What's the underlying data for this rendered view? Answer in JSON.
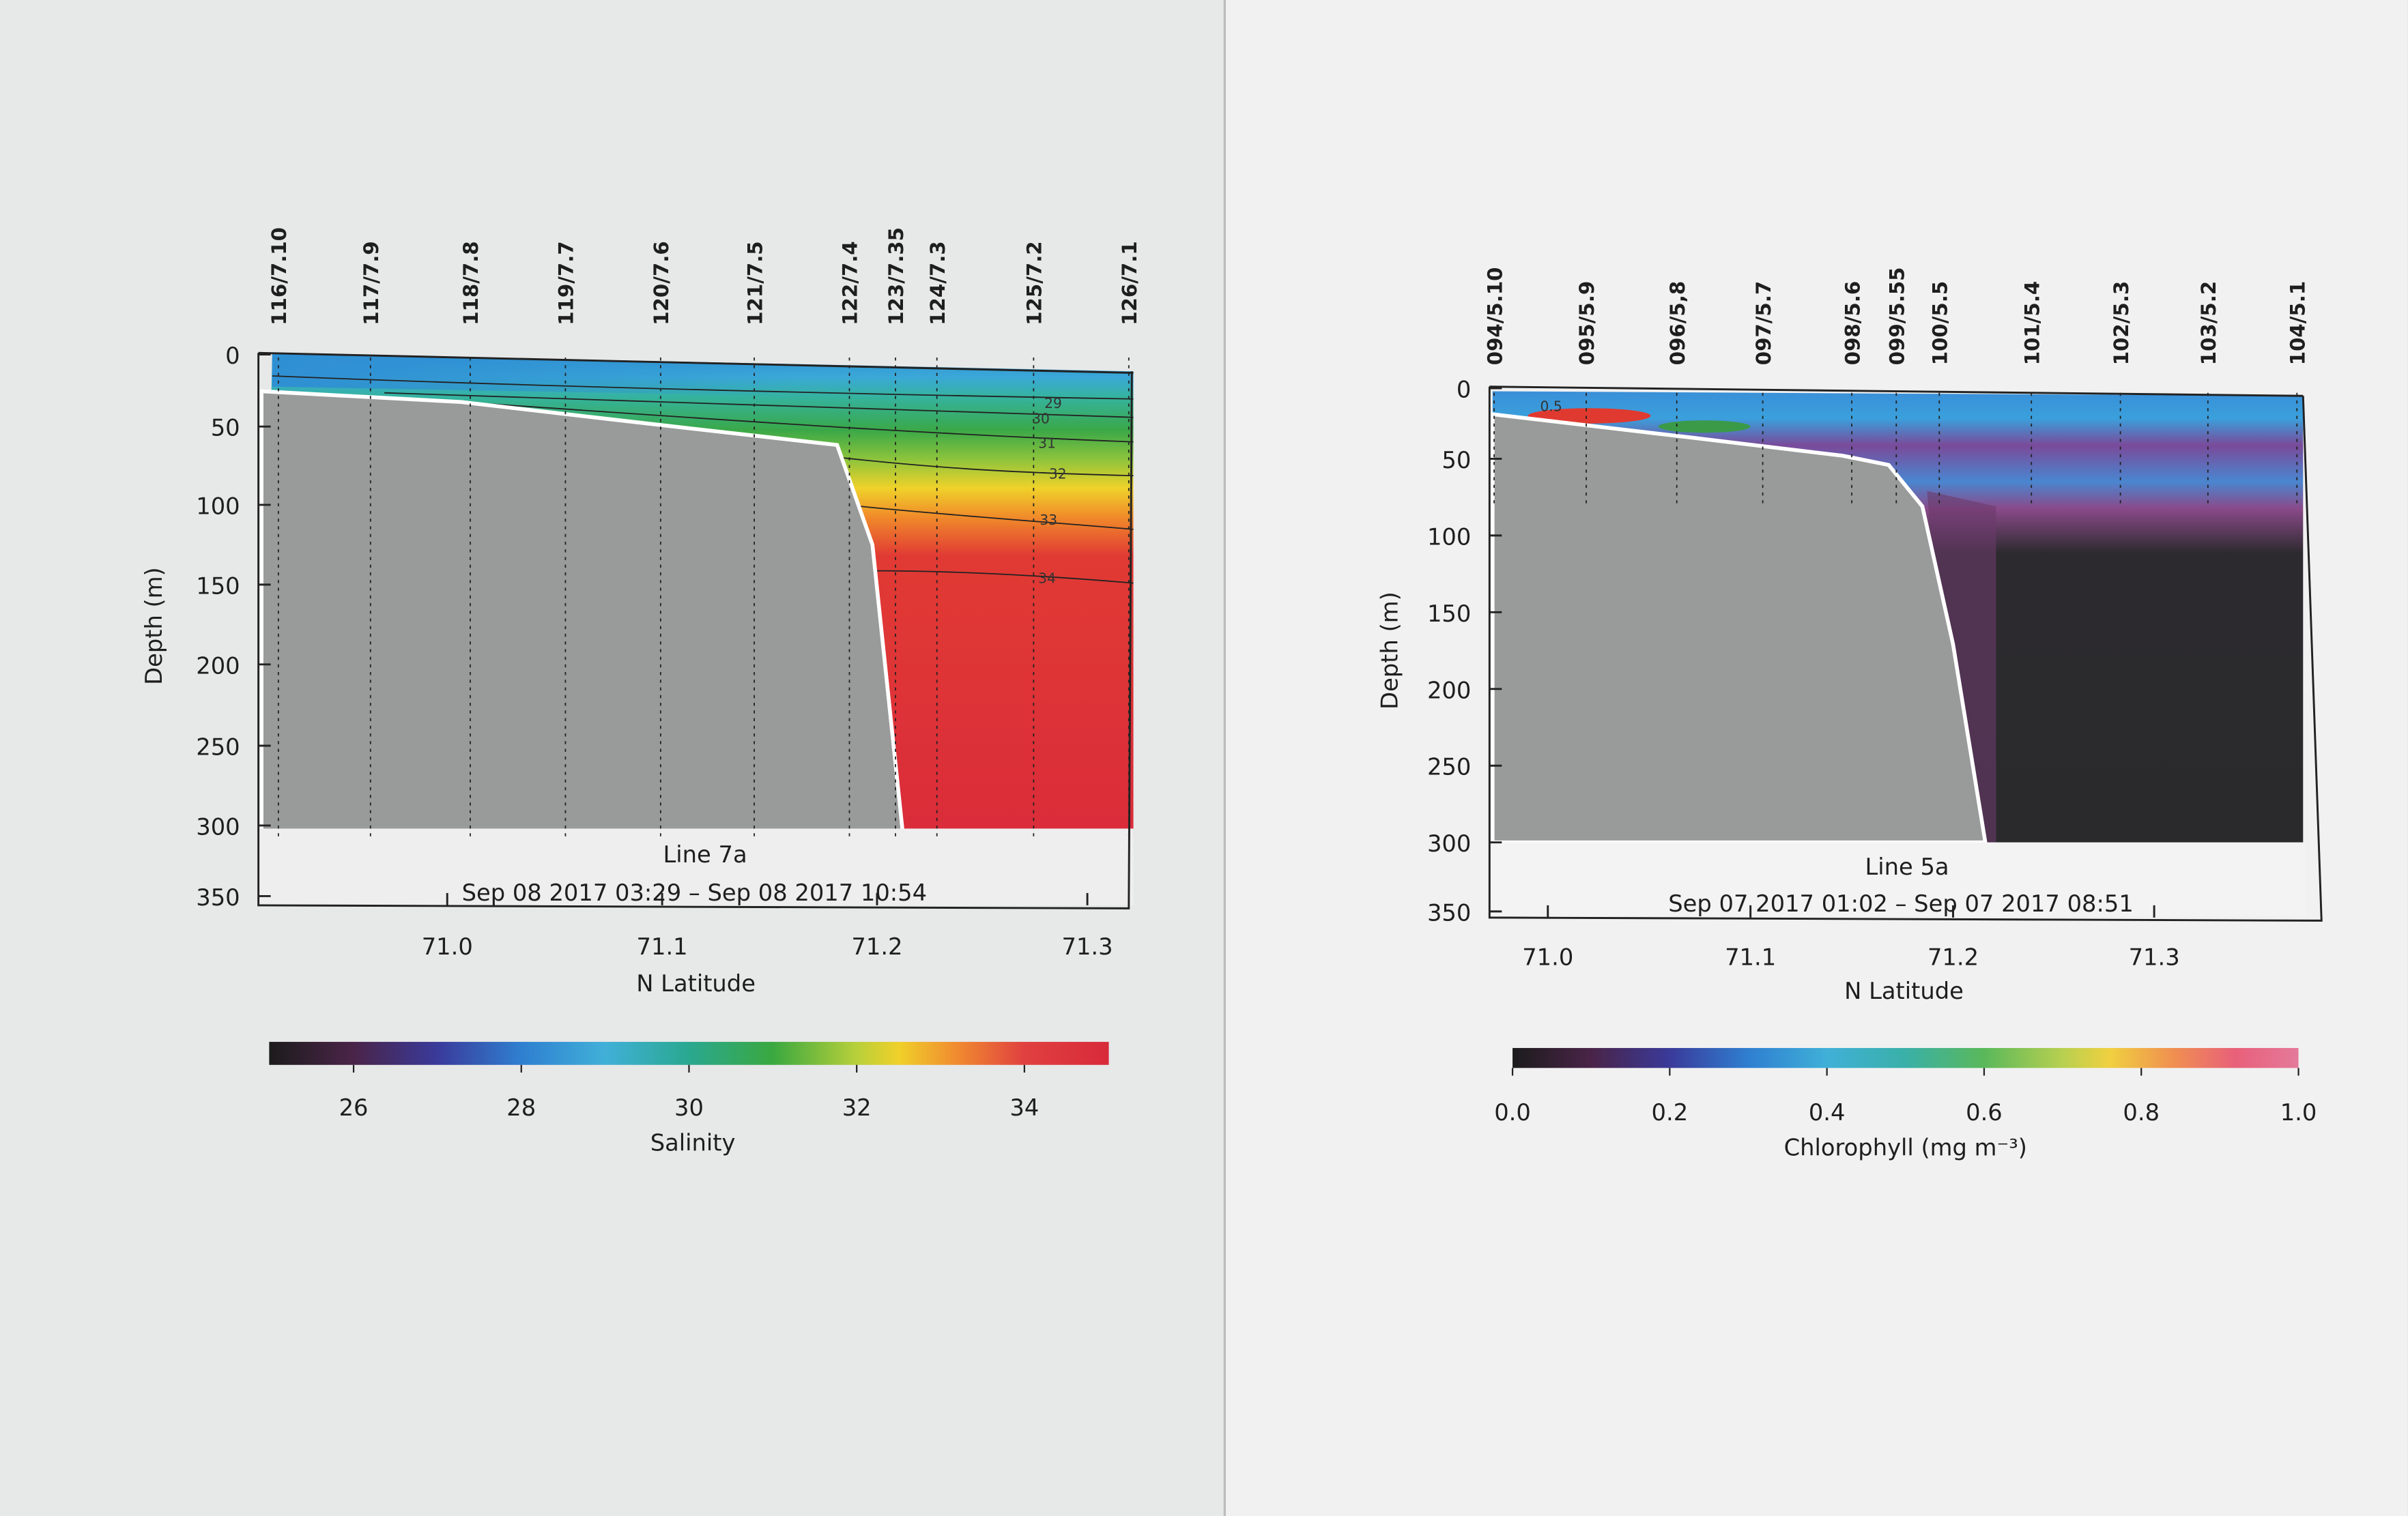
{
  "chart_data": [
    {
      "type": "heatmap",
      "title": "Line 7a",
      "subtitle": "Sep 08 2017 03:29 – Sep 08 2017 10:54",
      "xlabel": "N Latitude",
      "ylabel": "Depth (m)",
      "xticks": [
        "71.0",
        "71.1",
        "71.2",
        "71.3"
      ],
      "yticks": [
        "0",
        "50",
        "100",
        "150",
        "200",
        "250",
        "300",
        "350"
      ],
      "ylim": [
        350,
        0
      ],
      "xlim": [
        70.91,
        71.32
      ],
      "stations": [
        "116/7.10",
        "117/7.9",
        "118/7.8",
        "119/7.7",
        "120/7.6",
        "121/7.5",
        "122/7.4",
        "123/7.35",
        "124/7.3",
        "125/7.2",
        "126/7.1"
      ],
      "contour_labels": [
        "29",
        "30",
        "31",
        "32",
        "33",
        "34"
      ],
      "colorbar": {
        "label": "Salinity",
        "range": [
          25,
          35
        ],
        "ticks": [
          "26",
          "28",
          "30",
          "32",
          "34"
        ]
      },
      "variable": "Salinity",
      "description_values": {
        "surface_min": 28,
        "bottom_max": 34.5
      }
    },
    {
      "type": "heatmap",
      "title": "Line 5a",
      "subtitle": "Sep 07 2017 01:02 – Sep 07 2017 08:51",
      "xlabel": "N Latitude",
      "ylabel": "Depth (m)",
      "xticks": [
        "71.0",
        "71.1",
        "71.2",
        "71.3"
      ],
      "yticks": [
        "0",
        "50",
        "100",
        "150",
        "200",
        "250",
        "300",
        "350"
      ],
      "ylim": [
        350,
        0
      ],
      "xlim": [
        70.97,
        71.38
      ],
      "stations": [
        "094/5.10",
        "095/5.9",
        "096/5,8",
        "097/5.7",
        "098/5.6",
        "099/5.55",
        "100/5.5",
        "101/5.4",
        "102/5.3",
        "103/5.2",
        "104/5.1"
      ],
      "contour_labels": [
        "0.5"
      ],
      "colorbar": {
        "label": "Chlorophyll (mg m⁻³)",
        "range": [
          0.0,
          1.0
        ],
        "ticks": [
          "0.0",
          "0.2",
          "0.4",
          "0.6",
          "0.8",
          "1.0"
        ]
      },
      "variable": "Chlorophyll",
      "description_values": {
        "max_near_shore": 1.0,
        "deep_value": 0.0
      }
    }
  ],
  "colors": {
    "land": "#9a9b9b",
    "paper_left": "#e6e7e7",
    "paper_right": "#f1f1f1"
  }
}
